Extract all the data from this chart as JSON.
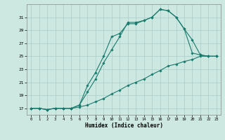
{
  "xlabel": "Humidex (Indice chaleur)",
  "bg_color": "#cce8e0",
  "grid_color": "#aacccc",
  "line_color": "#1a7a6e",
  "xlim": [
    -0.5,
    23.5
  ],
  "ylim": [
    16.0,
    33.0
  ],
  "xticks": [
    0,
    1,
    2,
    3,
    4,
    5,
    6,
    7,
    8,
    9,
    10,
    11,
    12,
    13,
    14,
    15,
    16,
    17,
    18,
    19,
    20,
    21,
    22,
    23
  ],
  "yticks": [
    17,
    19,
    21,
    23,
    25,
    27,
    29,
    31
  ],
  "series": [
    {
      "x": [
        0,
        1,
        2,
        3,
        4,
        5,
        6,
        7,
        8,
        9,
        10,
        11,
        12,
        13,
        14,
        15,
        16,
        17,
        18,
        19,
        20,
        21,
        22,
        23
      ],
      "y": [
        17,
        17,
        16.8,
        17,
        17,
        17,
        17.5,
        19.5,
        21.5,
        24.0,
        26.0,
        28.0,
        30.2,
        30.2,
        30.5,
        31.0,
        32.2,
        32.0,
        31.0,
        29.2,
        25.5,
        25.2,
        25.0,
        25.0
      ]
    },
    {
      "x": [
        0,
        1,
        2,
        3,
        4,
        5,
        6,
        7,
        8,
        9,
        10,
        11,
        12,
        13,
        14,
        15,
        16,
        17,
        18,
        19,
        20,
        21,
        22,
        23
      ],
      "y": [
        17,
        17,
        16.8,
        17,
        17,
        17,
        17.5,
        20.5,
        22.5,
        25.0,
        28.0,
        28.5,
        30.0,
        30.0,
        30.5,
        31.0,
        32.2,
        32.0,
        31.0,
        29.2,
        27.5,
        25.2,
        25.0,
        25.0
      ]
    },
    {
      "x": [
        0,
        1,
        2,
        3,
        4,
        5,
        6,
        7,
        8,
        9,
        10,
        11,
        12,
        13,
        14,
        15,
        16,
        17,
        18,
        19,
        20,
        21,
        22,
        23
      ],
      "y": [
        17,
        17,
        16.8,
        17,
        17,
        17,
        17.2,
        17.5,
        18.0,
        18.5,
        19.2,
        19.8,
        20.5,
        21.0,
        21.5,
        22.2,
        22.8,
        23.5,
        23.8,
        24.2,
        24.5,
        25.0,
        25.0,
        25.0
      ]
    }
  ]
}
